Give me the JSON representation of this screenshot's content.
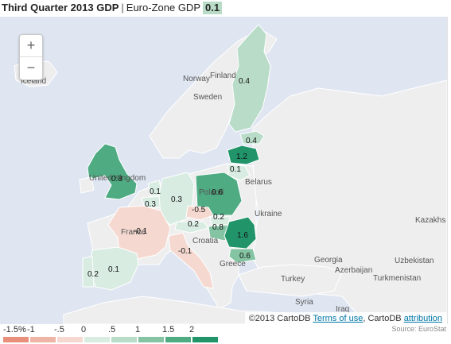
{
  "title": {
    "main": "Third Quarter 2013 GDP",
    "separator": "|",
    "subtitle": "Euro-Zone GDP",
    "badge": "0.1"
  },
  "zoom": {
    "in_label": "+",
    "out_label": "−"
  },
  "place_labels": {
    "iceland": "Iceland",
    "norway": "Norway",
    "sweden": "Sweden",
    "finland": "Finland",
    "united_kingdom": "United Kingdom",
    "belarus": "Belarus",
    "ukraine": "Ukraine",
    "kazakhstan": "Kazakhs",
    "croatia": "Croatia",
    "greece": "Greece",
    "turkey": "Turkey",
    "georgia": "Georgia",
    "azerbaijan": "Azerbaijan",
    "uzbekistan": "Uzbekistan",
    "turkmenistan": "Turkmenistan",
    "syria": "Syria",
    "iraq": "Iraq",
    "poland": "Poland",
    "france": "France"
  },
  "gdp_values": {
    "finland": "0.4",
    "estonia": "0.4",
    "latvia": "1.2",
    "lithuania": "0.1",
    "united_kingdom": "0.8",
    "netherlands": "0.1",
    "belgium": "0.3",
    "germany": "0.3",
    "poland": "0.6",
    "czech": "-0.5",
    "slovakia": "0.2",
    "austria": "0.2",
    "hungary": "0.8",
    "romania": "1.6",
    "bulgaria": "0.6",
    "france": "-0.1",
    "italy": "-0.1",
    "spain": "0.1",
    "portugal": "0.2"
  },
  "attribution": {
    "copyright": "©2013 CartoDB",
    "terms": "Terms of use",
    "middle": ", CartoDB",
    "attrib_link": "attribution"
  },
  "legend": {
    "labels": [
      "-1.5%",
      "-1",
      "-.5",
      "0",
      ".5",
      "1",
      "1.5",
      "2"
    ],
    "colors": [
      "#e8907c",
      "#eeb4a6",
      "#f5d9d1",
      "#d8ece2",
      "#b9dcc8",
      "#84c4a3",
      "#4eab82",
      "#22946a"
    ]
  },
  "source": "Source: EuroStat",
  "colors": {
    "sea": "#dfe6f2",
    "land": "#eeeeee",
    "border": "#ffffff"
  }
}
